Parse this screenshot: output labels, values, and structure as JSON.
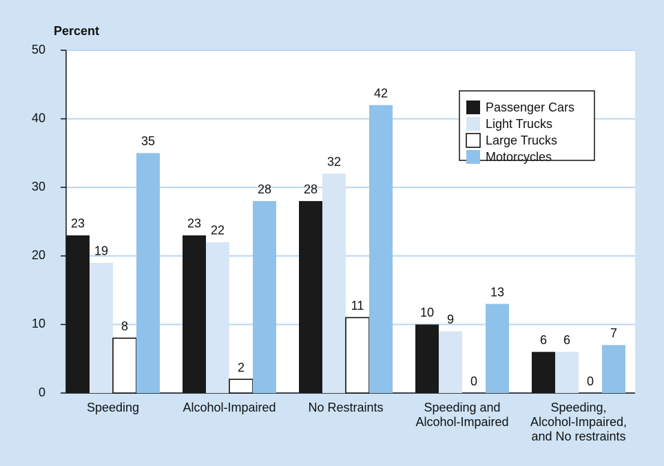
{
  "chart_data": {
    "type": "bar",
    "y_label": "Percent",
    "categories": [
      [
        "Speeding"
      ],
      [
        "Alcohol-Impaired"
      ],
      [
        "No Restraints"
      ],
      [
        "Speeding and",
        "Alcohol-Impaired"
      ],
      [
        "Speeding,",
        "Alcohol-Impaired,",
        "and No restraints"
      ]
    ],
    "series": [
      {
        "name": "Passenger Cars",
        "color": "#1a1a1a",
        "values": [
          23,
          23,
          28,
          10,
          6
        ]
      },
      {
        "name": "Light Trucks",
        "color": "#d6e6f5",
        "values": [
          19,
          22,
          32,
          9,
          6
        ]
      },
      {
        "name": "Large Trucks",
        "color": "#ffffff",
        "edgecolor": "#000000",
        "values": [
          8,
          2,
          11,
          0,
          0
        ]
      },
      {
        "name": "Motorcycles",
        "color": "#8fc2ea",
        "values": [
          35,
          28,
          42,
          13,
          7
        ]
      }
    ],
    "ylim": [
      0,
      50
    ],
    "yticks": [
      0,
      10,
      20,
      30,
      40,
      50
    ],
    "grid": true,
    "legend": "upper right"
  }
}
